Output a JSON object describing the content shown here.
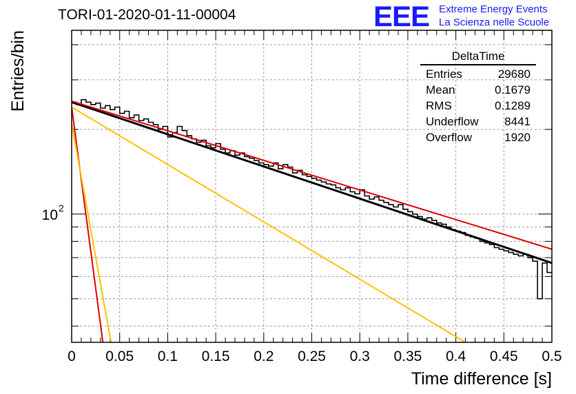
{
  "title": "TORI-01-2020-01-11-00004",
  "logo": {
    "mark": "EEE",
    "line1": "Extreme Energy Events",
    "line2": "La Scienza nelle Scuole",
    "color": "#1a1aff"
  },
  "stats_box": {
    "title": "DeltaTime",
    "rows": [
      {
        "label": "Entries",
        "value": "29680"
      },
      {
        "label": "Mean",
        "value": "0.1679"
      },
      {
        "label": "RMS",
        "value": "0.1289"
      },
      {
        "label": "Underflow",
        "value": "8441"
      },
      {
        "label": "Overflow",
        "value": "1920"
      }
    ]
  },
  "chart_data": {
    "type": "line",
    "title": "TORI-01-2020-01-11-00004",
    "xlabel": "Time difference [s]",
    "ylabel": "Entries/bin",
    "xlim": [
      0,
      0.5
    ],
    "ylim": [
      35,
      450
    ],
    "ylog": true,
    "grid": true,
    "x_ticks": [
      "0",
      "0.05",
      "0.1",
      "0.15",
      "0.2",
      "0.25",
      "0.3",
      "0.35",
      "0.4",
      "0.45",
      "0.5"
    ],
    "y_tick_label": "10^2",
    "series": [
      {
        "kind": "histogram",
        "color": "#000000",
        "bin_width": 0.005,
        "values": [
          250,
          245,
          255,
          250,
          245,
          248,
          238,
          243,
          235,
          240,
          228,
          232,
          220,
          225,
          215,
          218,
          212,
          208,
          200,
          205,
          188,
          195,
          205,
          198,
          190,
          185,
          180,
          183,
          175,
          172,
          178,
          170,
          165,
          168,
          162,
          165,
          160,
          158,
          155,
          152,
          150,
          148,
          152,
          145,
          150,
          147,
          140,
          143,
          138,
          136,
          134,
          132,
          130,
          128,
          127,
          124,
          122,
          124,
          120,
          118,
          122,
          116,
          113,
          115,
          112,
          110,
          108,
          106,
          108,
          104,
          102,
          100,
          98,
          96,
          97,
          95,
          93,
          92,
          90,
          88,
          87,
          86,
          84,
          83,
          82,
          80,
          79,
          78,
          76,
          75,
          74,
          73,
          72,
          71,
          72,
          70,
          68,
          50,
          67,
          62
        ]
      },
      {
        "kind": "fit",
        "color": "#000000",
        "x": [
          0,
          0.5
        ],
        "y": [
          250,
          67
        ]
      },
      {
        "kind": "fit",
        "color": "#dd0000",
        "x": [
          0,
          0.5
        ],
        "y": [
          252,
          75
        ]
      },
      {
        "kind": "fit",
        "color": "#dd0000",
        "x": [
          0.0,
          0.0325
        ],
        "y": [
          240,
          35
        ]
      },
      {
        "kind": "fit",
        "color": "#ffc000",
        "x": [
          0.0,
          0.041
        ],
        "y": [
          210,
          35
        ]
      },
      {
        "kind": "fit",
        "color": "#ffc000",
        "x": [
          0.0,
          0.41
        ],
        "y": [
          240,
          35
        ]
      }
    ]
  }
}
